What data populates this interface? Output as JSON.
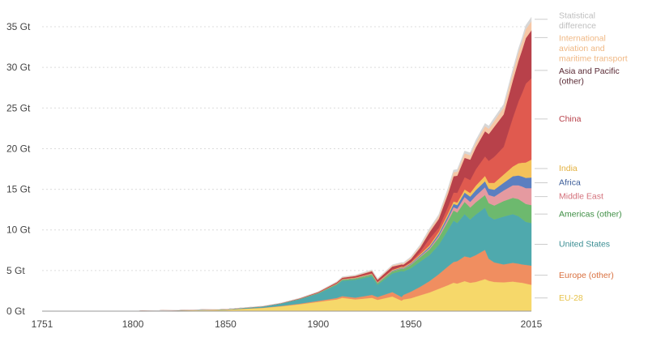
{
  "chart_data": {
    "type": "area",
    "stacked": true,
    "x": [
      1751,
      1800,
      1850,
      1870,
      1880,
      1890,
      1900,
      1910,
      1913,
      1920,
      1929,
      1932,
      1940,
      1945,
      1946,
      1950,
      1955,
      1960,
      1965,
      1970,
      1973,
      1975,
      1979,
      1982,
      1985,
      1990,
      1992,
      1995,
      2000,
      2005,
      2008,
      2010,
      2012,
      2015
    ],
    "xlim": [
      1751,
      2015
    ],
    "ylim": [
      0,
      36
    ],
    "x_ticks": [
      "1751",
      "1800",
      "1850",
      "1900",
      "1950",
      "2015"
    ],
    "y_ticks": [
      "0 Gt",
      "5 Gt",
      "10 Gt",
      "15 Gt",
      "20 Gt",
      "25 Gt",
      "30 Gt",
      "35 Gt"
    ],
    "grid": "horizontal dashed",
    "legend_placement": "right",
    "series": [
      {
        "name": "EU-28",
        "color": "#f6d86a",
        "values": [
          0,
          0.01,
          0.18,
          0.4,
          0.6,
          0.85,
          1.15,
          1.45,
          1.65,
          1.45,
          1.65,
          1.4,
          1.8,
          1.3,
          1.45,
          1.6,
          1.95,
          2.3,
          2.75,
          3.2,
          3.5,
          3.4,
          3.7,
          3.5,
          3.6,
          3.95,
          3.75,
          3.6,
          3.55,
          3.65,
          3.55,
          3.5,
          3.4,
          3.25
        ]
      },
      {
        "name": "Europe (other)",
        "color": "#f08e60",
        "values": [
          0,
          0,
          0.01,
          0.03,
          0.05,
          0.08,
          0.12,
          0.18,
          0.2,
          0.22,
          0.35,
          0.35,
          0.55,
          0.45,
          0.55,
          0.8,
          1.05,
          1.4,
          1.8,
          2.3,
          2.55,
          2.75,
          3.05,
          3.1,
          3.3,
          3.6,
          2.7,
          2.4,
          2.2,
          2.3,
          2.3,
          2.25,
          2.3,
          2.35
        ]
      },
      {
        "name": "United States",
        "color": "#4fa9ad",
        "values": [
          0,
          0,
          0.05,
          0.15,
          0.3,
          0.55,
          0.9,
          1.6,
          1.9,
          2.2,
          2.3,
          1.5,
          2.3,
          3.2,
          2.9,
          2.9,
          3.1,
          3.2,
          3.6,
          4.5,
          5.1,
          4.7,
          5.2,
          4.7,
          5.0,
          5.2,
          5.25,
          5.3,
          5.9,
          6.0,
          5.85,
          5.6,
          5.3,
          5.25
        ]
      },
      {
        "name": "Americas (other)",
        "color": "#6db96e",
        "values": [
          0,
          0,
          0,
          0.01,
          0.02,
          0.04,
          0.06,
          0.1,
          0.12,
          0.15,
          0.2,
          0.18,
          0.25,
          0.3,
          0.32,
          0.4,
          0.55,
          0.7,
          0.9,
          1.1,
          1.25,
          1.3,
          1.5,
          1.45,
          1.5,
          1.55,
          1.6,
          1.7,
          1.9,
          2.0,
          2.1,
          2.15,
          2.2,
          2.2
        ]
      },
      {
        "name": "Middle East",
        "color": "#e59aa0",
        "values": [
          0,
          0,
          0,
          0,
          0,
          0,
          0,
          0.01,
          0.01,
          0.02,
          0.03,
          0.03,
          0.04,
          0.05,
          0.05,
          0.07,
          0.1,
          0.15,
          0.22,
          0.32,
          0.4,
          0.45,
          0.6,
          0.7,
          0.8,
          0.95,
          1.0,
          1.1,
          1.3,
          1.55,
          1.7,
          1.85,
          1.95,
          2.1
        ]
      },
      {
        "name": "Africa",
        "color": "#5b7fc0",
        "values": [
          0,
          0,
          0,
          0,
          0,
          0,
          0.01,
          0.02,
          0.02,
          0.03,
          0.04,
          0.04,
          0.06,
          0.07,
          0.07,
          0.1,
          0.13,
          0.18,
          0.25,
          0.33,
          0.4,
          0.45,
          0.55,
          0.65,
          0.7,
          0.75,
          0.78,
          0.85,
          0.95,
          1.1,
          1.2,
          1.22,
          1.25,
          1.3
        ]
      },
      {
        "name": "India",
        "color": "#f4c25a",
        "values": [
          0,
          0,
          0,
          0.01,
          0.01,
          0.02,
          0.03,
          0.05,
          0.05,
          0.06,
          0.07,
          0.07,
          0.08,
          0.09,
          0.09,
          0.1,
          0.13,
          0.18,
          0.22,
          0.28,
          0.3,
          0.32,
          0.38,
          0.45,
          0.55,
          0.65,
          0.72,
          0.85,
          1.0,
          1.2,
          1.5,
          1.7,
          1.9,
          2.2
        ]
      },
      {
        "name": "China",
        "color": "#e05a4f",
        "values": [
          0,
          0,
          0,
          0,
          0,
          0,
          0.01,
          0.02,
          0.03,
          0.04,
          0.05,
          0.05,
          0.06,
          0.04,
          0.05,
          0.08,
          0.3,
          0.8,
          0.5,
          0.8,
          1.1,
          1.2,
          1.5,
          1.6,
          2.0,
          2.4,
          2.7,
          3.2,
          3.4,
          6.0,
          7.6,
          8.6,
          9.7,
          10.0
        ]
      },
      {
        "name": "Asia and Pacific (other)",
        "color": "#b8414a",
        "values": [
          0,
          0,
          0,
          0.01,
          0.02,
          0.04,
          0.07,
          0.12,
          0.14,
          0.16,
          0.24,
          0.24,
          0.35,
          0.25,
          0.25,
          0.35,
          0.5,
          0.8,
          1.1,
          1.6,
          2.0,
          2.1,
          2.4,
          2.5,
          2.7,
          3.1,
          3.3,
          3.7,
          4.0,
          4.6,
          5.0,
          5.3,
          5.6,
          5.9
        ]
      },
      {
        "name": "International aviation and maritime transport",
        "color": "#f6c7a6",
        "values": [
          0,
          0,
          0,
          0.01,
          0.01,
          0.02,
          0.03,
          0.05,
          0.06,
          0.07,
          0.09,
          0.09,
          0.12,
          0.15,
          0.15,
          0.18,
          0.22,
          0.28,
          0.35,
          0.45,
          0.5,
          0.5,
          0.55,
          0.55,
          0.58,
          0.62,
          0.65,
          0.72,
          0.85,
          0.95,
          1.05,
          1.05,
          1.1,
          1.12
        ]
      },
      {
        "name": "Statistical difference",
        "color": "#d7d7d7",
        "values": [
          0,
          0,
          0,
          0.01,
          0.01,
          0.02,
          0.03,
          0.05,
          0.06,
          0.06,
          0.08,
          0.08,
          0.1,
          0.1,
          0.1,
          0.12,
          0.15,
          0.18,
          0.2,
          0.25,
          0.27,
          0.28,
          0.3,
          0.3,
          0.32,
          0.35,
          0.35,
          0.38,
          0.4,
          0.42,
          0.45,
          0.45,
          0.48,
          0.5
        ]
      }
    ],
    "legend": [
      {
        "lines": [
          "Statistical",
          "difference"
        ],
        "color": "#bfbfbf",
        "series_index": 10
      },
      {
        "lines": [
          "International",
          "aviation and",
          "maritime transport"
        ],
        "color": "#f0b884",
        "series_index": 9
      },
      {
        "lines": [
          "Asia and Pacific",
          "(other)"
        ],
        "color": "#5a2a35",
        "series_index": 8
      },
      {
        "lines": [
          "China"
        ],
        "color": "#b8414a",
        "series_index": 7
      },
      {
        "lines": [
          "India"
        ],
        "color": "#e3b140",
        "series_index": 6
      },
      {
        "lines": [
          "Africa"
        ],
        "color": "#3f5f9a",
        "series_index": 5
      },
      {
        "lines": [
          "Middle East"
        ],
        "color": "#d4717b",
        "series_index": 4
      },
      {
        "lines": [
          "Americas (other)"
        ],
        "color": "#3e8e44",
        "series_index": 3
      },
      {
        "lines": [
          "United States"
        ],
        "color": "#3a8d92",
        "series_index": 2
      },
      {
        "lines": [
          "Europe (other)"
        ],
        "color": "#d9703f",
        "series_index": 1
      },
      {
        "lines": [
          "EU-28"
        ],
        "color": "#e6c24a",
        "series_index": 0
      }
    ]
  }
}
